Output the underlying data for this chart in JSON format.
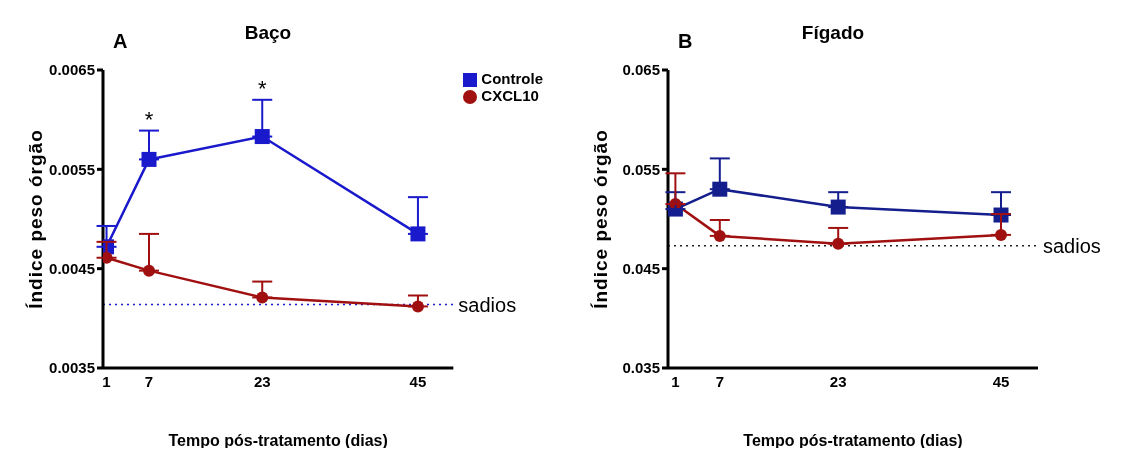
{
  "chart_data": [
    {
      "type": "line",
      "title": "Baço",
      "xlabel": "Tempo pós-tratamento (dias)",
      "ylabel": "Índice peso órgão",
      "x": [
        1,
        7,
        23,
        45
      ],
      "xlim": [
        0.5,
        50
      ],
      "xticks": [
        1,
        7,
        23,
        45
      ],
      "ylim": [
        0.0035,
        0.0065
      ],
      "yticks": [
        0.0035,
        0.0045,
        0.0055,
        0.0065
      ],
      "legend": "top right",
      "series": [
        {
          "name": "Controle",
          "color": "#1a1acc",
          "marker": "square",
          "values": [
            0.00472,
            0.0056,
            0.00583,
            0.00485
          ],
          "errors": [
            [
              0.00472,
              0.00493
            ],
            [
              0.0056,
              0.00589
            ],
            [
              0.00583,
              0.0062
            ],
            [
              0.00485,
              0.00522
            ]
          ]
        },
        {
          "name": "CXCL10",
          "color": "#a01010",
          "marker": "circle",
          "values": [
            0.00461,
            0.00448,
            0.00421,
            0.00412
          ],
          "errors": [
            [
              0.00461,
              0.00477
            ],
            [
              0.00448,
              0.00485
            ],
            [
              0.00421,
              0.00437
            ],
            [
              0.00412,
              0.00423
            ]
          ]
        }
      ],
      "ref_lines": [
        {
          "axis": "y",
          "value": 0.00414,
          "label": "sadios",
          "color": "#1a1acc",
          "line_style": "dotted"
        }
      ],
      "annotations": [
        "A",
        {
          "text": "*",
          "x": 7,
          "y": 0.00589
        },
        {
          "text": "*",
          "x": 23,
          "y": 0.0062
        }
      ]
    },
    {
      "type": "line",
      "title": "Fígado",
      "xlabel": "Tempo pós-tratamento (dias)",
      "ylabel": "Índice peso órgão",
      "x": [
        1,
        7,
        23,
        45
      ],
      "xlim": [
        0,
        50
      ],
      "xticks": [
        1,
        7,
        23,
        45
      ],
      "ylim": [
        0.035,
        0.065
      ],
      "yticks": [
        0.035,
        0.045,
        0.055,
        0.065
      ],
      "series": [
        {
          "color": "#141e8c",
          "marker": "square",
          "values": [
            0.051,
            0.053,
            0.0512,
            0.0504
          ],
          "errors": [
            [
              0.051,
              0.0527
            ],
            [
              0.053,
              0.0561
            ],
            [
              0.0512,
              0.0527
            ],
            [
              0.0504,
              0.0527
            ]
          ]
        },
        {
          "color": "#a01010",
          "marker": "circle",
          "values": [
            0.0515,
            0.0483,
            0.0475,
            0.0484
          ],
          "errors": [
            [
              0.0515,
              0.0546
            ],
            [
              0.0483,
              0.0499
            ],
            [
              0.0475,
              0.0491
            ],
            [
              0.0484,
              0.0505
            ]
          ]
        }
      ],
      "ref_lines": [
        {
          "axis": "y",
          "value": 0.0473,
          "label": "sadios",
          "color": "#222222",
          "line_style": "dotted"
        }
      ],
      "annotations": [
        "B"
      ]
    }
  ]
}
